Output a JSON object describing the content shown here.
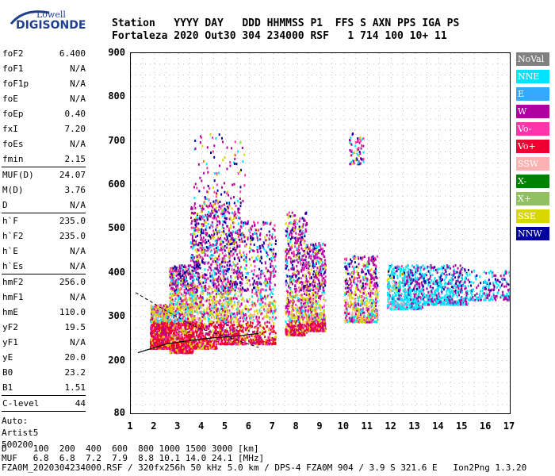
{
  "logo": {
    "top": "Lowell",
    "bottom": "DIGISONDE"
  },
  "header": {
    "line1": "Station   YYYY DAY   DDD HHMMSS P1  FFS S AXN PPS IGA PS",
    "line2": "Fortaleza 2020 Out30 304 234000 RSF   1 714 100 10+ 11"
  },
  "params_group1": [
    {
      "k": "foF2",
      "v": "6.400"
    },
    {
      "k": "foF1",
      "v": "N/A"
    },
    {
      "k": "foF1p",
      "v": "N/A"
    },
    {
      "k": "foE",
      "v": "N/A"
    },
    {
      "k": "foEp",
      "v": "0.40"
    },
    {
      "k": "fxI",
      "v": "7.20"
    },
    {
      "k": "foEs",
      "v": "N/A"
    },
    {
      "k": "fmin",
      "v": "2.15"
    }
  ],
  "params_group2": [
    {
      "k": "MUF(D)",
      "v": "24.07"
    },
    {
      "k": "M(D)",
      "v": "3.76"
    },
    {
      "k": "D",
      "v": "N/A"
    }
  ],
  "params_group3": [
    {
      "k": "h`F",
      "v": "235.0"
    },
    {
      "k": "h`F2",
      "v": "235.0"
    },
    {
      "k": "h`E",
      "v": "N/A"
    },
    {
      "k": "h`Es",
      "v": "N/A"
    }
  ],
  "params_group4": [
    {
      "k": "hmF2",
      "v": "256.0"
    },
    {
      "k": "hmF1",
      "v": "N/A"
    },
    {
      "k": "hmE",
      "v": "110.0"
    },
    {
      "k": "yF2",
      "v": "19.5"
    },
    {
      "k": "yF1",
      "v": "N/A"
    },
    {
      "k": "yE",
      "v": "20.0"
    },
    {
      "k": "B0",
      "v": "23.2"
    },
    {
      "k": "B1",
      "v": "1.51"
    }
  ],
  "params_group5": [
    {
      "k": "C-level",
      "v": "44"
    }
  ],
  "auto": [
    "Auto:",
    "Artist5",
    "500200"
  ],
  "legend": [
    {
      "label": "NoVal",
      "color": "#808080"
    },
    {
      "label": "NNE",
      "color": "#00e5ff"
    },
    {
      "label": "E",
      "color": "#33aaff"
    },
    {
      "label": "W",
      "color": "#b000a0"
    },
    {
      "label": "Vo-",
      "color": "#ff33aa"
    },
    {
      "label": "Vo+",
      "color": "#ee0033"
    },
    {
      "label": "SSW",
      "color": "#ffb0b0"
    },
    {
      "label": "X-",
      "color": "#008000"
    },
    {
      "label": "X+",
      "color": "#90c060"
    },
    {
      "label": "SSE",
      "color": "#d8d800"
    },
    {
      "label": "NNW",
      "color": "#0000a0"
    }
  ],
  "bottom": {
    "line1": "D     100  200  400  600  800 1000 1500 3000 [km]",
    "line2": "MUF   6.8  6.8  7.2  7.9  8.8 10.1 14.0 24.1 [MHz]",
    "line3": "FZA0M_2020304234000.RSF / 320fx256h 50 kHz 5.0 km / DPS-4 FZA0M 904 / 3.9 S 321.6 E   Ion2Png 1.3.20"
  },
  "chart_data": {
    "type": "scatter",
    "xlabel": "",
    "ylabel": "",
    "xlim": [
      1,
      17
    ],
    "ylim": [
      80,
      900
    ],
    "x_ticks": [
      1,
      2,
      3,
      4,
      5,
      6,
      7,
      8,
      9,
      10,
      11,
      12,
      13,
      14,
      15,
      16,
      17
    ],
    "y_ticks": [
      80,
      200,
      300,
      400,
      500,
      600,
      700,
      800,
      900
    ],
    "grid": true,
    "clusters": [
      {
        "x": [
          1.8,
          2.6
        ],
        "y": [
          230,
          330
        ],
        "d": 0.6
      },
      {
        "x": [
          2.6,
          3.6
        ],
        "y": [
          220,
          420
        ],
        "d": 0.8
      },
      {
        "x": [
          3.5,
          4.6
        ],
        "y": [
          230,
          560
        ],
        "d": 0.7
      },
      {
        "x": [
          4.6,
          5.6
        ],
        "y": [
          240,
          560
        ],
        "d": 0.6
      },
      {
        "x": [
          5.6,
          7.1
        ],
        "y": [
          240,
          520
        ],
        "d": 0.5
      },
      {
        "x": [
          7.5,
          8.4
        ],
        "y": [
          260,
          540
        ],
        "d": 0.5
      },
      {
        "x": [
          8.4,
          9.2
        ],
        "y": [
          270,
          470
        ],
        "d": 0.45
      },
      {
        "x": [
          10.0,
          11.4
        ],
        "y": [
          290,
          440
        ],
        "d": 0.4
      },
      {
        "x": [
          11.8,
          13.3
        ],
        "y": [
          320,
          420
        ],
        "d": 0.4
      },
      {
        "x": [
          13.3,
          15.2
        ],
        "y": [
          330,
          420
        ],
        "d": 0.35
      },
      {
        "x": [
          15.2,
          17.0
        ],
        "y": [
          340,
          410
        ],
        "d": 0.15
      },
      {
        "x": [
          3.6,
          5.8
        ],
        "y": [
          560,
          720
        ],
        "d": 0.08
      },
      {
        "x": [
          10.2,
          10.8
        ],
        "y": [
          650,
          720
        ],
        "d": 0.05
      }
    ],
    "profile_curve": {
      "x": [
        1.3,
        2.5,
        3.5,
        4.5,
        5.5,
        6.4
      ],
      "y": [
        218,
        238,
        246,
        252,
        256,
        262
      ]
    },
    "dashed_curve": {
      "x": [
        1.2,
        2.6,
        3.8,
        5.0,
        6.4
      ],
      "y": [
        355,
        310,
        275,
        255,
        230
      ]
    }
  }
}
